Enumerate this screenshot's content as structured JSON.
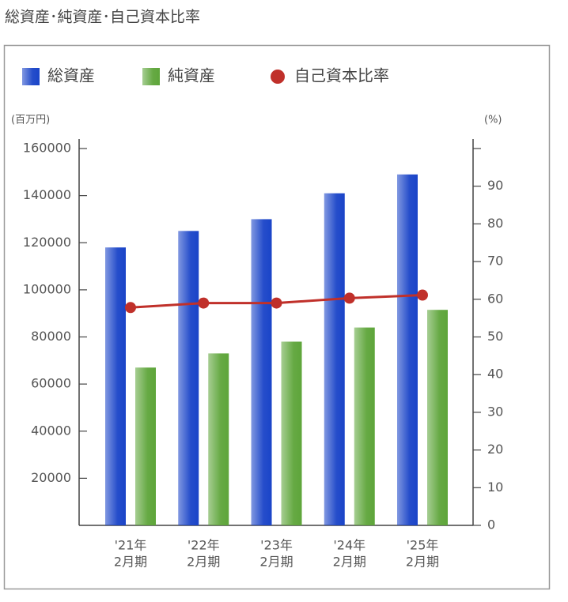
{
  "chart_data": {
    "type": "bar",
    "title": "総資産･純資産･自己資本比率",
    "y_label": "(百万円)",
    "y2_label": "(%)",
    "categories": [
      [
        "'21年",
        "2月期"
      ],
      [
        "'22年",
        "2月期"
      ],
      [
        "'23年",
        "2月期"
      ],
      [
        "'24年",
        "2月期"
      ],
      [
        "'25年",
        "2月期"
      ]
    ],
    "series": [
      {
        "name": "総資産",
        "type": "bar",
        "color": "#1a44c8",
        "values": [
          118000,
          125000,
          130000,
          141000,
          149000
        ]
      },
      {
        "name": "純資産",
        "type": "bar",
        "color": "#5ea53a",
        "values": [
          67000,
          73000,
          78000,
          84000,
          91500
        ]
      },
      {
        "name": "自己資本比率",
        "type": "line",
        "axis": "y2",
        "color": "#c0302a",
        "values": [
          57.8,
          59.0,
          59.0,
          60.3,
          61.1
        ]
      }
    ],
    "ylim": [
      0,
      160000
    ],
    "yticks": [
      20000,
      40000,
      60000,
      80000,
      100000,
      120000,
      140000,
      160000
    ],
    "y2lim": [
      0,
      100
    ],
    "y2ticks": [
      0,
      10,
      20,
      30,
      40,
      50,
      60,
      70,
      80,
      90
    ],
    "grid": false
  }
}
